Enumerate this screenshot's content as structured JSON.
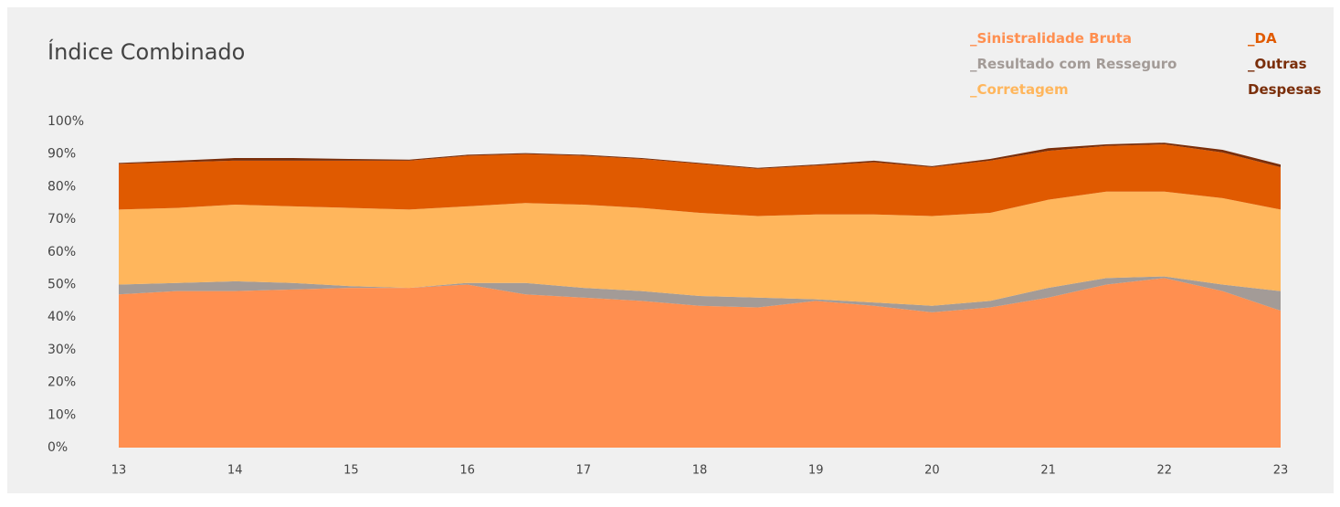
{
  "chart_data": {
    "type": "stacked-area",
    "title": "Índice Combinado",
    "x": [
      13,
      13.5,
      14,
      14.5,
      15,
      15.5,
      16,
      16.5,
      17,
      17.5,
      18,
      18.5,
      19,
      19.5,
      20,
      20.5,
      21,
      21.5,
      22,
      22.5,
      23
    ],
    "series": [
      {
        "name": "_Sinistralidade Bruta",
        "color": "#ff8f50",
        "values": [
          47,
          48,
          48,
          48.5,
          49,
          49,
          50,
          47,
          46,
          45,
          43.5,
          43,
          45,
          43.5,
          41.5,
          43,
          46,
          50,
          52,
          48,
          42
        ]
      },
      {
        "name": "_Resultado com Resseguro",
        "color": "#a39b97",
        "values": [
          3,
          2.5,
          3,
          2,
          0.5,
          0,
          0.5,
          3.5,
          3,
          3,
          3,
          3,
          0.5,
          1,
          2,
          2,
          3,
          2,
          0.5,
          2,
          6
        ]
      },
      {
        "name": "_Corretagem",
        "color": "#ffb65c",
        "values": [
          23,
          23,
          23.5,
          23.5,
          24,
          24,
          23.5,
          24.5,
          25.5,
          25.5,
          25.5,
          25,
          26,
          27,
          27.5,
          27,
          27,
          26.5,
          26,
          26.5,
          25
        ]
      },
      {
        "name": "_DA",
        "color": "#e05a00",
        "values": [
          14,
          14,
          13.5,
          14,
          14.5,
          15,
          15.5,
          15,
          15,
          15,
          15,
          14.5,
          15,
          16,
          15,
          16,
          15,
          14,
          14.5,
          14,
          13
        ]
      },
      {
        "name": "_Outras Despesas",
        "color": "#7a2e0a",
        "values": [
          0.3,
          0.5,
          0.8,
          0.8,
          0.5,
          0.3,
          0.3,
          0.3,
          0.3,
          0.3,
          0.3,
          0.3,
          0.3,
          0.5,
          0.3,
          0.5,
          0.8,
          0.5,
          0.5,
          0.8,
          0.8
        ]
      }
    ],
    "xlim": [
      13,
      23
    ],
    "xticks": [
      13,
      14,
      15,
      16,
      17,
      18,
      19,
      20,
      21,
      22,
      23
    ],
    "ylim": [
      0,
      100
    ],
    "yticks": [
      {
        "value": 0,
        "label": "0%"
      },
      {
        "value": 10,
        "label": "10%"
      },
      {
        "value": 20,
        "label": "20%"
      },
      {
        "value": 30,
        "label": "30%"
      },
      {
        "value": 40,
        "label": "40%"
      },
      {
        "value": 50,
        "label": "50%"
      },
      {
        "value": 60,
        "label": "60%"
      },
      {
        "value": 70,
        "label": "70%"
      },
      {
        "value": 80,
        "label": "80%"
      },
      {
        "value": 90,
        "label": "90%"
      },
      {
        "value": 100,
        "label": "100%"
      }
    ]
  }
}
